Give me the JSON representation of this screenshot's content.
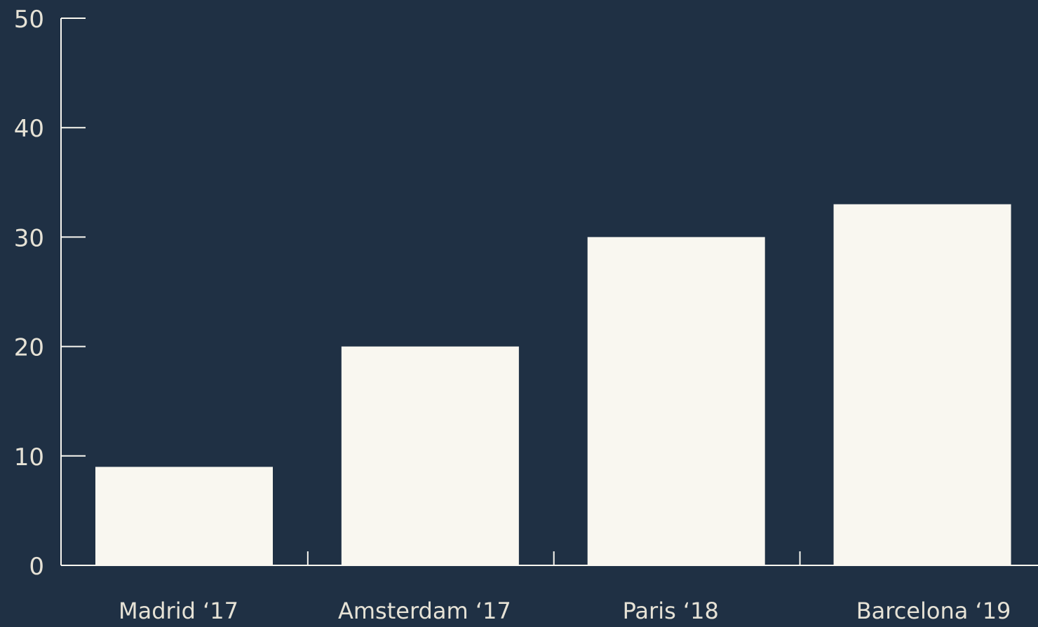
{
  "chart_data": {
    "type": "bar",
    "categories": [
      "Madrid ‘17",
      "Amsterdam ‘17",
      "Paris ‘18",
      "Barcelona ‘19"
    ],
    "values": [
      9,
      20,
      30,
      33
    ],
    "ylim": [
      0,
      50
    ],
    "yticks": [
      0,
      10,
      20,
      30,
      40,
      50
    ],
    "grid": false,
    "legend": "none",
    "colors": {
      "background": "#1f3044",
      "bar": "#f9f7f0",
      "axis": "#f9f7f0",
      "text": "#e6e2d6"
    }
  }
}
